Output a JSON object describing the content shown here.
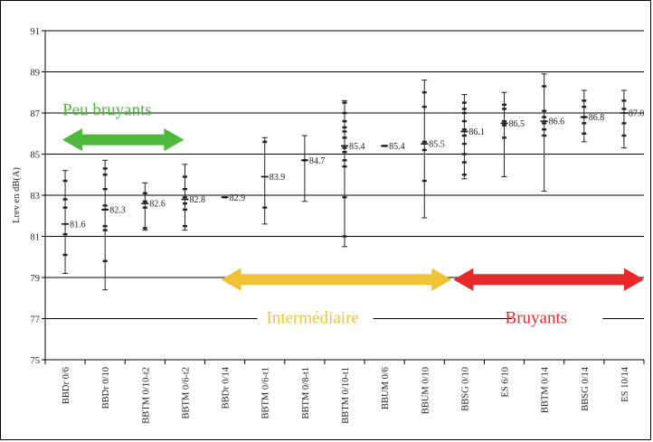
{
  "chart_data": {
    "type": "scatter",
    "title": "",
    "ylabel": "Lrev en dB(A)",
    "ylim": [
      75,
      91
    ],
    "yticks": [
      75,
      77,
      79,
      81,
      83,
      85,
      87,
      89,
      91
    ],
    "grid": "horizontal",
    "categories": [
      "BBDr 0/6",
      "BBDr 0/10",
      "BBTM 0/10-t2",
      "BBTM 0/6-t2",
      "BBDr 0/14",
      "BBTM 0/6-t1",
      "BBTM 0/8-t1",
      "BBTM 0/10-t1",
      "BBUM 0/6",
      "BBUM 0/10",
      "BBSG 0/10",
      "ES 6/10",
      "BBTM 0/14",
      "BBSG 0/14",
      "ES 10/14"
    ],
    "means": [
      81.6,
      82.3,
      82.6,
      82.8,
      82.9,
      83.9,
      84.7,
      85.4,
      85.4,
      85.5,
      86.1,
      86.5,
      86.6,
      86.8,
      87.0
    ],
    "mean_labels": [
      "81.6",
      "82.3",
      "82.6",
      "82.8",
      "82.9",
      "83.9",
      "84.7",
      "85.4",
      "85.4",
      "85.5",
      "86.1",
      "86.5",
      "86.6",
      "86.8",
      "87.0"
    ],
    "min": [
      79.2,
      78.4,
      81.3,
      81.3,
      82.9,
      81.6,
      82.7,
      80.5,
      85.4,
      81.9,
      83.8,
      83.9,
      83.2,
      85.6,
      85.3
    ],
    "max": [
      84.2,
      84.7,
      83.6,
      84.5,
      82.9,
      85.8,
      85.9,
      87.6,
      85.4,
      88.6,
      87.9,
      88.0,
      88.9,
      88.1,
      88.1
    ],
    "points": [
      [
        80.1,
        81.1,
        82.4,
        82.8,
        83.7
      ],
      [
        79.8,
        81.3,
        81.5,
        82.3,
        82.5,
        83.3,
        84.0,
        84.3
      ],
      [
        81.4,
        82.4,
        82.7,
        83.1
      ],
      [
        81.5,
        82.3,
        82.6,
        82.9,
        83.3,
        83.9
      ],
      [
        82.9
      ],
      [
        82.4,
        85.6
      ],
      [
        84.7
      ],
      [
        81.0,
        82.9,
        84.4,
        84.7,
        85.1,
        85.3,
        85.8,
        86.1,
        86.3,
        86.6,
        87.0,
        87.5
      ],
      [
        85.4
      ],
      [
        83.7,
        85.2,
        85.6,
        87.3,
        88.0
      ],
      [
        84.0,
        84.6,
        85.0,
        85.5,
        85.9,
        86.2,
        86.6,
        87.0,
        87.2,
        87.5
      ],
      [
        85.8,
        86.4,
        86.6,
        87.2,
        87.4
      ],
      [
        85.9,
        86.2,
        86.5,
        86.8,
        87.1,
        88.3
      ],
      [
        86.0,
        86.5,
        86.8,
        87.3,
        87.6
      ],
      [
        85.9,
        86.5,
        87.2,
        87.6
      ]
    ],
    "bands": [
      {
        "label": "Peu bruyants",
        "color": "#4db83a"
      },
      {
        "label": "Intermédiaire",
        "color": "#efc236"
      },
      {
        "label": "Bruyants",
        "color": "#e8282a"
      }
    ]
  }
}
